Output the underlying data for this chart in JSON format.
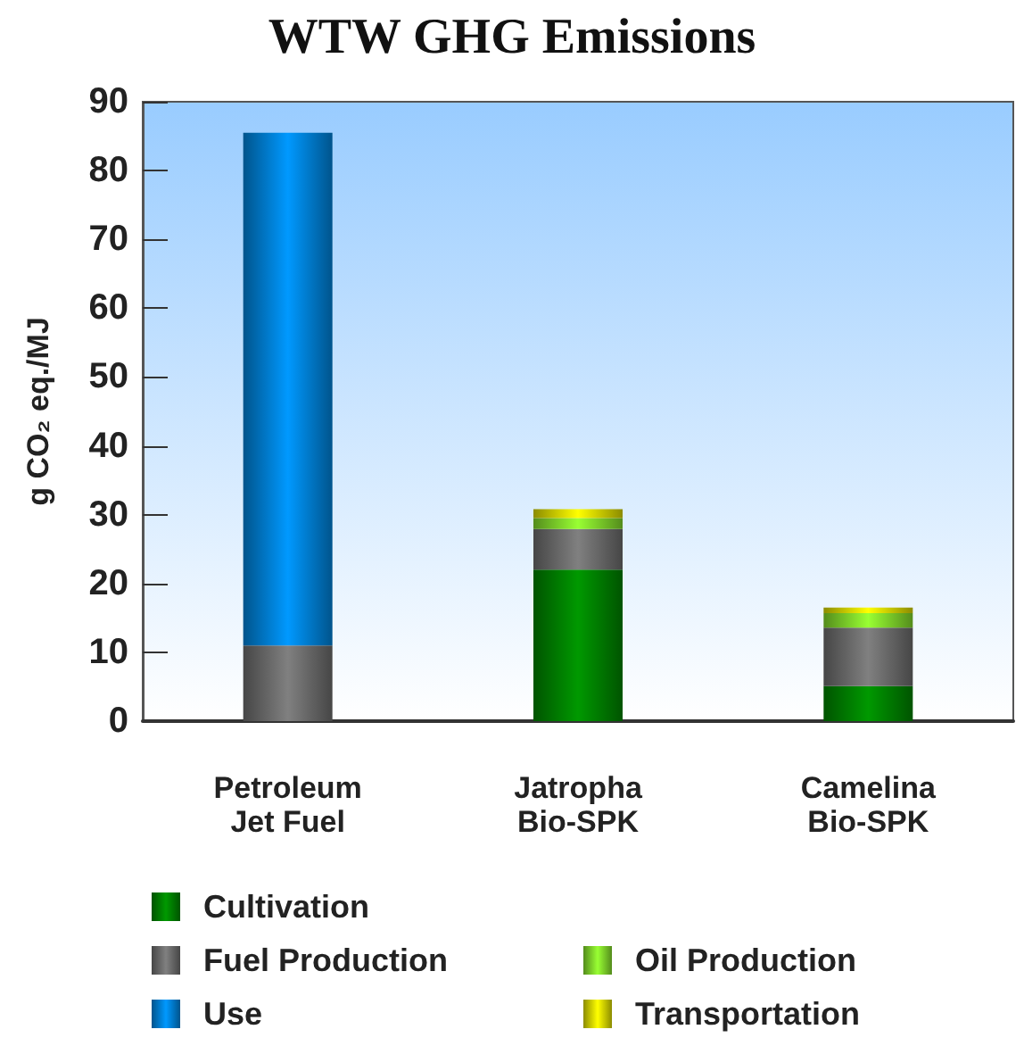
{
  "chart_data": {
    "type": "bar",
    "title": "WTW GHG Emissions",
    "ylabel": "g CO₂ eq./MJ",
    "categories": [
      "Petroleum\nJet Fuel",
      "Jatropha\nBio-SPK",
      "Camelina\nBio-SPK"
    ],
    "stacked": true,
    "series": [
      {
        "name": "Cultivation",
        "color": "#009900",
        "values": [
          null,
          22,
          5.1
        ]
      },
      {
        "name": "Fuel Production",
        "color": "#808080",
        "values": [
          11,
          5.9,
          8.5
        ]
      },
      {
        "name": "Use",
        "color": "#0099ff",
        "values": [
          74.5,
          null,
          null
        ]
      },
      {
        "name": "Oil Production",
        "color": "#99ff33",
        "values": [
          null,
          1.6,
          2.1
        ]
      },
      {
        "name": "Transportation",
        "color": "#ffff00",
        "values": [
          null,
          1.3,
          0.8
        ]
      }
    ],
    "ylim": [
      0,
      90
    ],
    "yticks": [
      0,
      10,
      20,
      30,
      40,
      50,
      60,
      70,
      80,
      90
    ],
    "grid": false,
    "legend": "bottom"
  }
}
